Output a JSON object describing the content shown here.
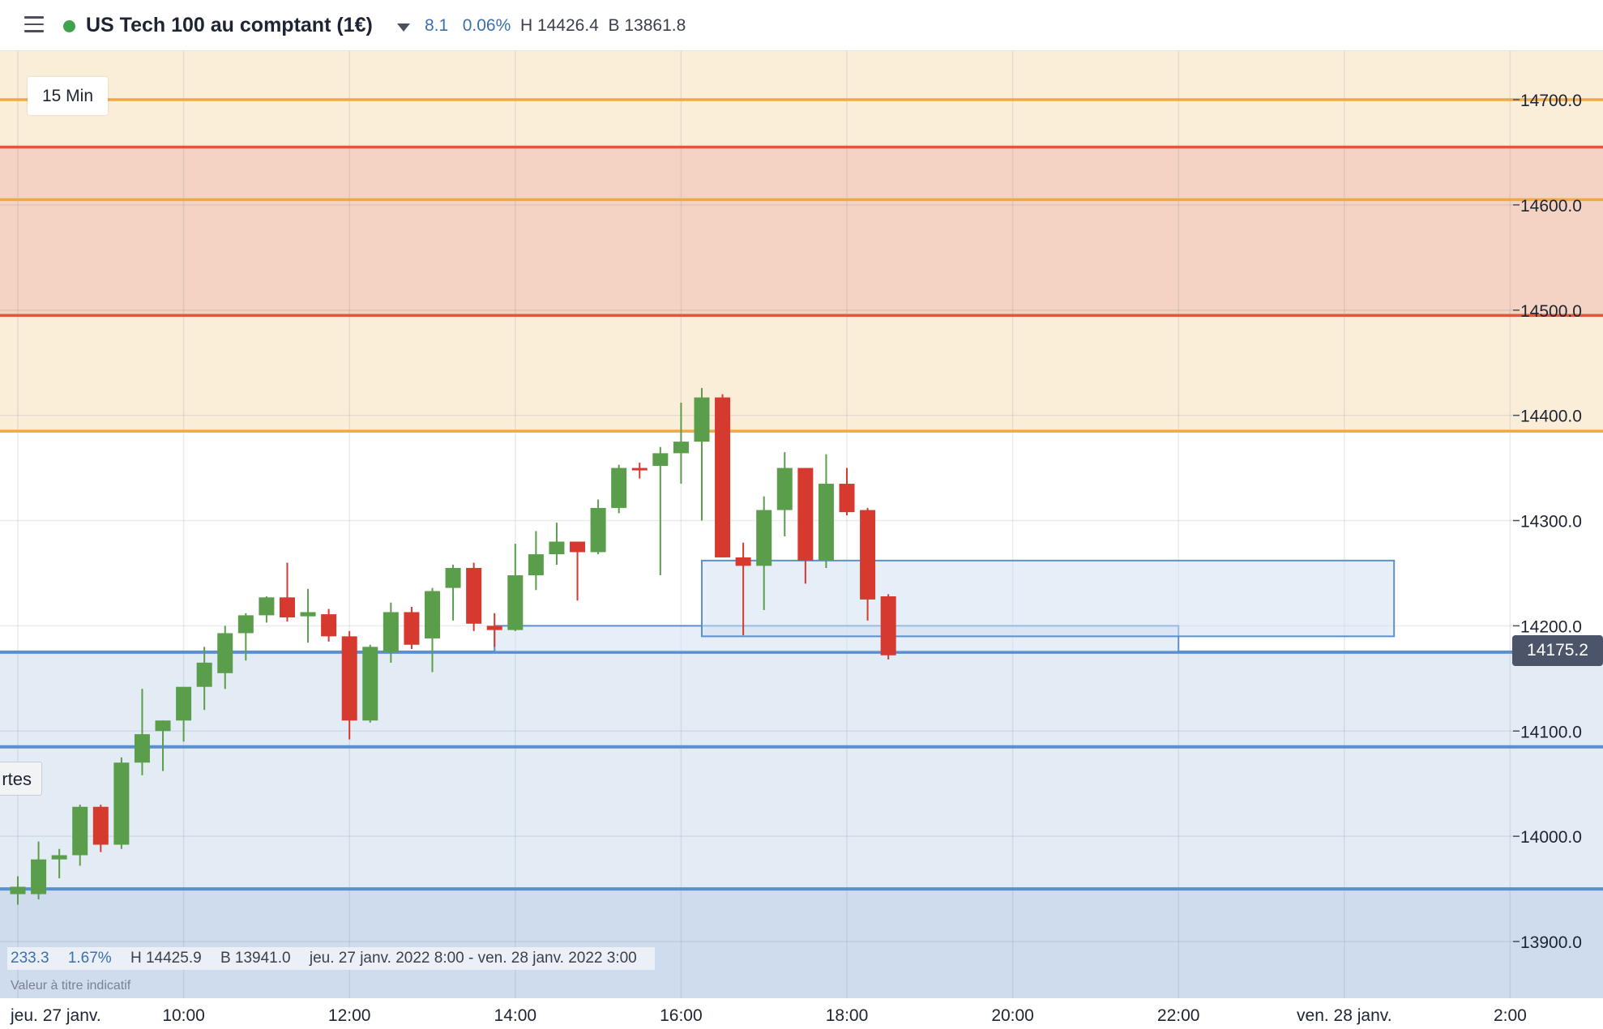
{
  "header": {
    "instrument": "US Tech 100 au comptant (1€)",
    "change": "8.1",
    "change_pct": "0.06%",
    "high": "H 14426.4",
    "low": "B 13861.8",
    "status_color": "#3fa34d"
  },
  "interval_label": "15 Min",
  "side_tab_label": "rtes",
  "stats": {
    "change": "233.3",
    "change_pct": "1.67%",
    "high": "H 14425.9",
    "low": "B 13941.0",
    "range": "jeu. 27 janv. 2022 8:00 - ven. 28 janv. 2022 3:00"
  },
  "disclaimer": "Valeur à titre indicatif",
  "price_tag": "14175.2",
  "colors": {
    "up": "#5a9e4b",
    "down": "#d63a2f",
    "zone_orange": "#fbeed9",
    "zone_red": "#f4d3c2",
    "zone_blue": "#e3ebf5",
    "line_blue": "#5b8fd0",
    "line_orange": "#f0a844",
    "line_red": "#dc5a3c"
  },
  "chart_data": {
    "type": "candlestick",
    "ylim": [
      13850,
      14750
    ],
    "y_ticks": [
      "14700.0",
      "14600.0",
      "14500.0",
      "14400.0",
      "14300.0",
      "14200.0",
      "14100.0",
      "14000.0",
      "13900.0"
    ],
    "y_tick_values": [
      14700,
      14600,
      14500,
      14400,
      14300,
      14200,
      14100,
      14000,
      13900
    ],
    "x_ticks": [
      "jeu. 27 janv.",
      "10:00",
      "12:00",
      "14:00",
      "16:00",
      "18:00",
      "20:00",
      "22:00",
      "ven. 28 janv.",
      "2:00"
    ],
    "x_tick_hours": [
      8,
      10,
      12,
      14,
      16,
      18,
      20,
      22,
      24,
      26
    ],
    "xlim_hours": [
      8,
      27.35
    ],
    "last_price": 14175.2,
    "candles": [
      {
        "t": 8.0,
        "o": 13945,
        "h": 13962,
        "l": 13935,
        "c": 13952
      },
      {
        "t": 8.25,
        "o": 13945,
        "h": 13995,
        "l": 13940,
        "c": 13978
      },
      {
        "t": 8.5,
        "o": 13978,
        "h": 13988,
        "l": 13960,
        "c": 13982
      },
      {
        "t": 8.75,
        "o": 13982,
        "h": 14030,
        "l": 13972,
        "c": 14028
      },
      {
        "t": 9.0,
        "o": 14028,
        "h": 14030,
        "l": 13985,
        "c": 13992
      },
      {
        "t": 9.25,
        "o": 13992,
        "h": 14075,
        "l": 13988,
        "c": 14070
      },
      {
        "t": 9.5,
        "o": 14070,
        "h": 14140,
        "l": 14058,
        "c": 14097
      },
      {
        "t": 9.75,
        "o": 14100,
        "h": 14110,
        "l": 14062,
        "c": 14110
      },
      {
        "t": 10.0,
        "o": 14110,
        "h": 14140,
        "l": 14090,
        "c": 14142
      },
      {
        "t": 10.25,
        "o": 14142,
        "h": 14180,
        "l": 14120,
        "c": 14165
      },
      {
        "t": 10.5,
        "o": 14155,
        "h": 14200,
        "l": 14140,
        "c": 14193
      },
      {
        "t": 10.75,
        "o": 14193,
        "h": 14212,
        "l": 14167,
        "c": 14210
      },
      {
        "t": 11.0,
        "o": 14210,
        "h": 14228,
        "l": 14203,
        "c": 14227
      },
      {
        "t": 11.25,
        "o": 14227,
        "h": 14260,
        "l": 14204,
        "c": 14208
      },
      {
        "t": 11.5,
        "o": 14209,
        "h": 14235,
        "l": 14184,
        "c": 14213
      },
      {
        "t": 11.75,
        "o": 14211,
        "h": 14216,
        "l": 14185,
        "c": 14190
      },
      {
        "t": 12.0,
        "o": 14190,
        "h": 14195,
        "l": 14092,
        "c": 14110
      },
      {
        "t": 12.25,
        "o": 14110,
        "h": 14182,
        "l": 14108,
        "c": 14180
      },
      {
        "t": 12.5,
        "o": 14175,
        "h": 14222,
        "l": 14165,
        "c": 14213
      },
      {
        "t": 12.75,
        "o": 14213,
        "h": 14218,
        "l": 14178,
        "c": 14182
      },
      {
        "t": 13.0,
        "o": 14188,
        "h": 14236,
        "l": 14156,
        "c": 14233
      },
      {
        "t": 13.25,
        "o": 14236,
        "h": 14258,
        "l": 14205,
        "c": 14255
      },
      {
        "t": 13.5,
        "o": 14255,
        "h": 14260,
        "l": 14195,
        "c": 14202
      },
      {
        "t": 13.75,
        "o": 14200,
        "h": 14212,
        "l": 14180,
        "c": 14196
      },
      {
        "t": 14.0,
        "o": 14196,
        "h": 14278,
        "l": 14195,
        "c": 14248
      },
      {
        "t": 14.25,
        "o": 14248,
        "h": 14290,
        "l": 14234,
        "c": 14268
      },
      {
        "t": 14.5,
        "o": 14268,
        "h": 14298,
        "l": 14258,
        "c": 14280
      },
      {
        "t": 14.75,
        "o": 14280,
        "h": 14280,
        "l": 14224,
        "c": 14270
      },
      {
        "t": 15.0,
        "o": 14270,
        "h": 14320,
        "l": 14268,
        "c": 14312
      },
      {
        "t": 15.25,
        "o": 14312,
        "h": 14353,
        "l": 14307,
        "c": 14350
      },
      {
        "t": 15.5,
        "o": 14350,
        "h": 14355,
        "l": 14340,
        "c": 14348
      },
      {
        "t": 15.75,
        "o": 14352,
        "h": 14370,
        "l": 14248,
        "c": 14364
      },
      {
        "t": 16.0,
        "o": 14364,
        "h": 14412,
        "l": 14335,
        "c": 14375
      },
      {
        "t": 16.25,
        "o": 14375,
        "h": 14426,
        "l": 14300,
        "c": 14417
      },
      {
        "t": 16.5,
        "o": 14417,
        "h": 14420,
        "l": 14265,
        "c": 14265
      },
      {
        "t": 16.75,
        "o": 14265,
        "h": 14279,
        "l": 14191,
        "c": 14257
      },
      {
        "t": 17.0,
        "o": 14257,
        "h": 14323,
        "l": 14215,
        "c": 14310
      },
      {
        "t": 17.25,
        "o": 14310,
        "h": 14365,
        "l": 14285,
        "c": 14350
      },
      {
        "t": 17.5,
        "o": 14350,
        "h": 14350,
        "l": 14240,
        "c": 14262
      },
      {
        "t": 17.75,
        "o": 14262,
        "h": 14363,
        "l": 14255,
        "c": 14335
      },
      {
        "t": 18.0,
        "o": 14335,
        "h": 14350,
        "l": 14305,
        "c": 14308
      },
      {
        "t": 18.25,
        "o": 14310,
        "h": 14312,
        "l": 14205,
        "c": 14225
      },
      {
        "t": 18.5,
        "o": 14228,
        "h": 14230,
        "l": 14168,
        "c": 14172
      }
    ],
    "zones": [
      {
        "kind": "orange",
        "from": 14385,
        "to": 14750
      },
      {
        "kind": "red",
        "from": 14495,
        "to": 14655
      },
      {
        "kind": "blue",
        "from": 13850,
        "to": 14175
      }
    ],
    "horizontal_lines": [
      {
        "y": 14700,
        "color": "orange"
      },
      {
        "y": 14655,
        "color": "red"
      },
      {
        "y": 14605,
        "color": "orange"
      },
      {
        "y": 14495,
        "color": "red"
      },
      {
        "y": 14385,
        "color": "orange"
      },
      {
        "y": 14175,
        "color": "blue"
      },
      {
        "y": 14085,
        "color": "blue"
      },
      {
        "y": 13950,
        "color": "blue"
      }
    ],
    "boxes": [
      {
        "t0": 13.75,
        "t1": 22.0,
        "y0": 14175,
        "y1": 14200
      },
      {
        "t0": 16.25,
        "t1": 24.6,
        "y0": 14190,
        "y1": 14262
      }
    ]
  }
}
